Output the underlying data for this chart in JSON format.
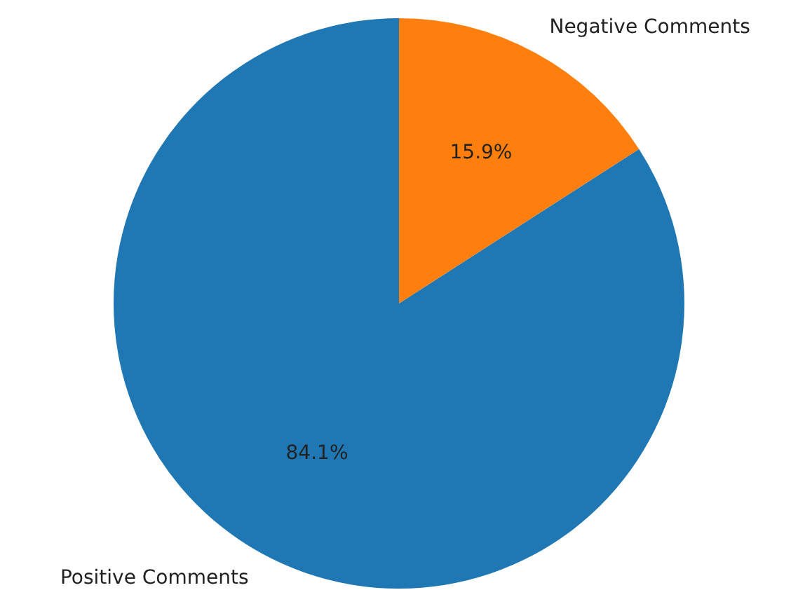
{
  "chart_data": {
    "type": "pie",
    "categories": [
      "Positive Comments",
      "Negative Comments"
    ],
    "values": [
      84.1,
      15.9
    ],
    "colors": [
      "#1f77b4",
      "#ff7f0e"
    ],
    "value_labels": [
      "84.1%",
      "15.9%"
    ],
    "legend": false
  }
}
